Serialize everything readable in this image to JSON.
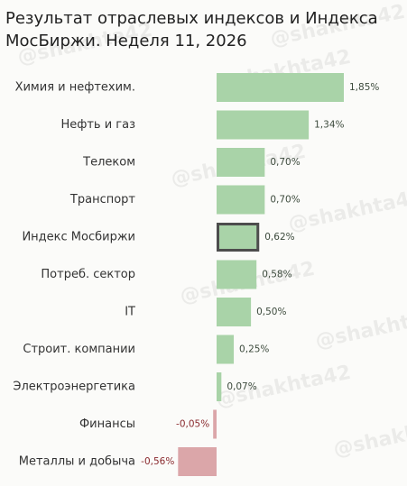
{
  "chart_data": {
    "type": "barh",
    "title": "Результат отраслевых индексов и Индекса МосБиржи. Неделя 11, 2026",
    "watermark": "@shakhta42",
    "categories": [
      "Химия и нефтехим.",
      "Нефть и газ",
      "Телеком",
      "Транспорт",
      "Индекс Мосбиржи",
      "Потреб. сектор",
      "IT",
      "Строит. компании",
      "Электроэнергетика",
      "Финансы",
      "Металлы и добыча"
    ],
    "values": [
      1.85,
      1.34,
      0.7,
      0.7,
      0.62,
      0.58,
      0.5,
      0.25,
      0.07,
      -0.05,
      -0.56
    ],
    "value_labels": [
      "1,85%",
      "1,34%",
      "0,70%",
      "0,70%",
      "0,62%",
      "0,58%",
      "0,50%",
      "0,25%",
      "0,07%",
      "-0,05%",
      "-0,56%"
    ],
    "positive_color": "#a9d3a8",
    "negative_color": "#dba6a9",
    "positive_label_color": "#3c4a3c",
    "negative_label_color": "#8a2b2f",
    "highlight_edge_color": "#4d4d4d",
    "edgecolors": [
      null,
      null,
      null,
      null,
      "#4d4d4d",
      null,
      null,
      null,
      null,
      null,
      null
    ]
  }
}
